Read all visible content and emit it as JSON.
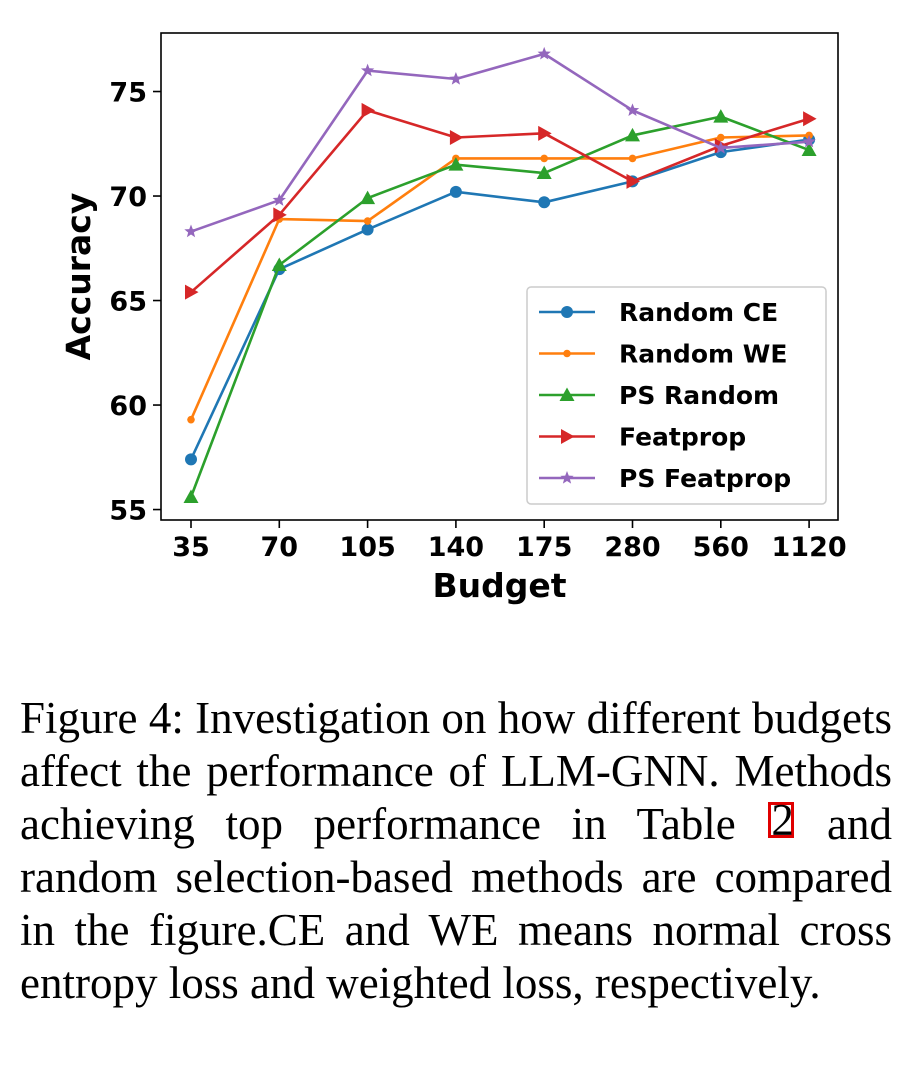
{
  "chart_data": {
    "type": "line",
    "xlabel": "Budget",
    "ylabel": "Accuracy",
    "categories": [
      "35",
      "70",
      "105",
      "140",
      "175",
      "280",
      "560",
      "1120"
    ],
    "yticks": [
      55,
      60,
      65,
      70,
      75
    ],
    "ylim": [
      54.5,
      77.8
    ],
    "grid": false,
    "legend_position": "lower-right",
    "series": [
      {
        "name": "Random CE",
        "color": "#1f77b4",
        "marker": "circle",
        "values": [
          57.4,
          66.5,
          68.4,
          70.2,
          69.7,
          70.7,
          72.1,
          72.7
        ]
      },
      {
        "name": "Random WE",
        "color": "#ff7f0e",
        "marker": "small-dot",
        "values": [
          59.3,
          68.9,
          68.8,
          71.8,
          71.8,
          71.8,
          72.8,
          72.9
        ]
      },
      {
        "name": "PS Random",
        "color": "#2ca02c",
        "marker": "triangle-up",
        "values": [
          55.6,
          66.7,
          69.9,
          71.5,
          71.1,
          72.9,
          73.8,
          72.2
        ]
      },
      {
        "name": "Featprop",
        "color": "#d62728",
        "marker": "triangle-right",
        "values": [
          65.4,
          69.1,
          74.1,
          72.8,
          73.0,
          70.7,
          72.4,
          73.7
        ]
      },
      {
        "name": "PS Featprop",
        "color": "#9467bd",
        "marker": "star",
        "values": [
          68.3,
          69.8,
          76.0,
          75.6,
          76.8,
          74.1,
          72.3,
          72.6
        ]
      }
    ]
  },
  "caption": {
    "before_ref": "Figure 4:  Investigation on how different budgets affect the performance of LLM-GNN. Methods achieving top performance in Table ",
    "ref": "2",
    "after_ref": " and random selection-based methods are compared in the figure.CE and WE means normal cross entropy loss and weighted loss, respectively.",
    "ref_box_color": "#e00000"
  }
}
